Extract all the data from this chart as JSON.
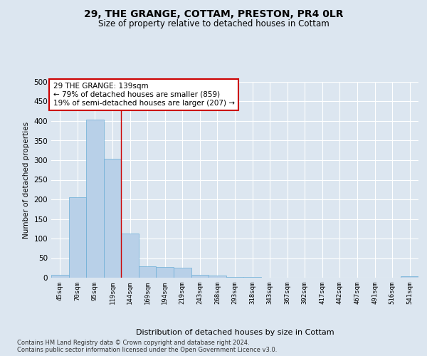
{
  "title": "29, THE GRANGE, COTTAM, PRESTON, PR4 0LR",
  "subtitle": "Size of property relative to detached houses in Cottam",
  "xlabel": "Distribution of detached houses by size in Cottam",
  "ylabel": "Number of detached properties",
  "bar_color": "#b8d0e8",
  "bar_edge_color": "#6baed6",
  "background_color": "#dce6f0",
  "fig_background_color": "#dce6f0",
  "grid_color": "#ffffff",
  "categories": [
    "45sqm",
    "70sqm",
    "95sqm",
    "119sqm",
    "144sqm",
    "169sqm",
    "194sqm",
    "219sqm",
    "243sqm",
    "268sqm",
    "293sqm",
    "318sqm",
    "343sqm",
    "367sqm",
    "392sqm",
    "417sqm",
    "442sqm",
    "467sqm",
    "491sqm",
    "516sqm",
    "541sqm"
  ],
  "values": [
    8,
    205,
    403,
    303,
    113,
    30,
    27,
    25,
    8,
    6,
    2,
    1,
    0,
    0,
    0,
    0,
    0,
    0,
    0,
    0,
    3
  ],
  "ylim": [
    0,
    500
  ],
  "yticks": [
    0,
    50,
    100,
    150,
    200,
    250,
    300,
    350,
    400,
    450,
    500
  ],
  "red_line_x": 3,
  "annotation_title": "29 THE GRANGE: 139sqm",
  "annotation_line1": "← 79% of detached houses are smaller (859)",
  "annotation_line2": "19% of semi-detached houses are larger (207) →",
  "annotation_box_color": "#ffffff",
  "annotation_box_edge": "#cc0000",
  "footer1": "Contains HM Land Registry data © Crown copyright and database right 2024.",
  "footer2": "Contains public sector information licensed under the Open Government Licence v3.0."
}
